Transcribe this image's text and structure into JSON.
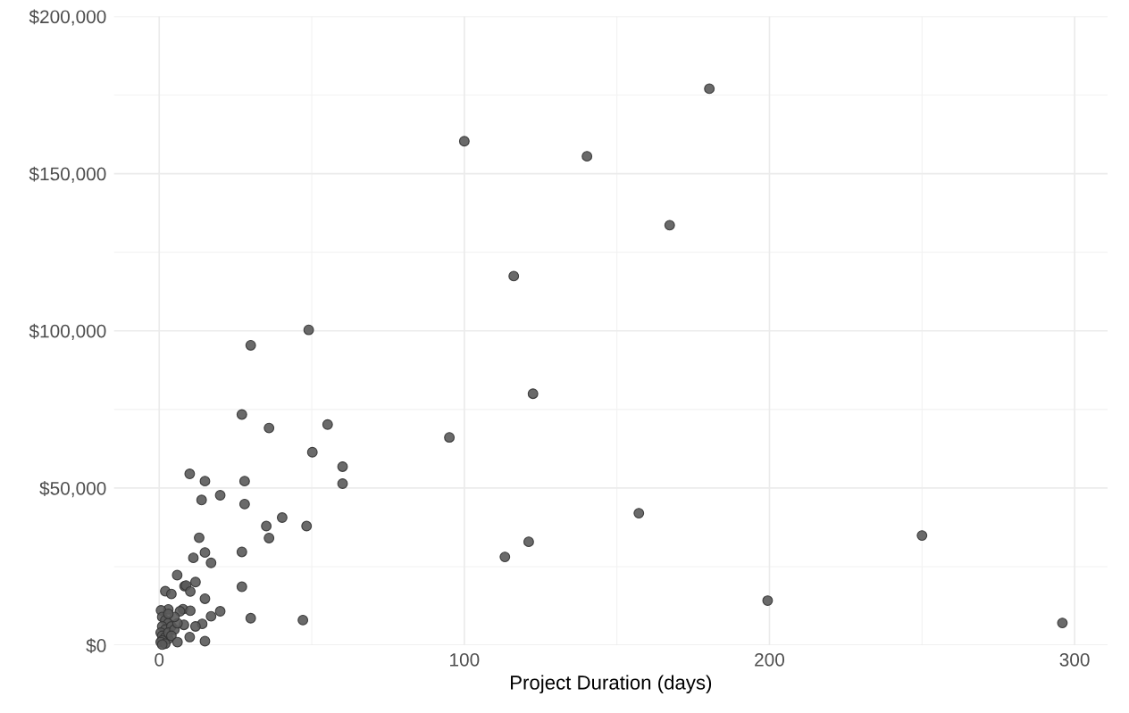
{
  "chart_data": {
    "type": "scatter",
    "xlabel": "Project Duration (days)",
    "xlim": [
      -14.8,
      310.8
    ],
    "xticks": [
      0,
      100,
      200,
      300
    ],
    "ylim": [
      0,
      200000
    ],
    "yticks": [
      {
        "value": 0,
        "label": "$0"
      },
      {
        "value": 50000,
        "label": "$50,000"
      },
      {
        "value": 100000,
        "label": "$100,000"
      },
      {
        "value": 150000,
        "label": "$150,000"
      },
      {
        "value": 200000,
        "label": "$200,000"
      }
    ],
    "grid": true,
    "marker": "circle",
    "series": [
      {
        "color": "#5a5a5a",
        "x": [
          100,
          180.3,
          140.2,
          167.3,
          116.2,
          30.0,
          49.0,
          122.5,
          27.1,
          55.2,
          36.0,
          95.1,
          50.2,
          60.1,
          60.1,
          10.0,
          15.0,
          28.0,
          20.0,
          13.9,
          28.0,
          40.3,
          35.1,
          48.3,
          36.0,
          157.2,
          250,
          121.1,
          113.3,
          13.1,
          15.0,
          27.1,
          11.2,
          17.0,
          5.9,
          8.3,
          8.8,
          11.9,
          10.2,
          2.0,
          4.0,
          15.0,
          27.1,
          30.0,
          47.1,
          20.0,
          17.0,
          14.1,
          11.9,
          8.1,
          10.0,
          15.0,
          7.8,
          10.2,
          6.8,
          3.0,
          0.6,
          199.4,
          296,
          1,
          2,
          3,
          1,
          2,
          4,
          0.5,
          1,
          2,
          3,
          1,
          0.5,
          2,
          1,
          3,
          5,
          4,
          6,
          5,
          3,
          6
        ],
        "values": [
          160300,
          177000,
          155500,
          133600,
          117400,
          95400,
          100300,
          80000,
          73400,
          70200,
          69100,
          66100,
          61400,
          56800,
          51400,
          54500,
          52200,
          52200,
          47700,
          46200,
          44900,
          40600,
          37900,
          37900,
          34100,
          42000,
          34900,
          32900,
          28100,
          34200,
          29500,
          29700,
          27800,
          26200,
          22300,
          18800,
          19000,
          20100,
          17100,
          17200,
          16300,
          14800,
          18600,
          8600,
          8000,
          10800,
          9200,
          6800,
          6000,
          6500,
          2600,
          1300,
          11500,
          11000,
          10800,
          11400,
          11100,
          14200,
          7100,
          9000,
          8000,
          7000,
          6000,
          5000,
          6000,
          4000,
          3000,
          2500,
          2000,
          1500,
          1000,
          500,
          200,
          4000,
          5000,
          3000,
          7000,
          9000,
          10000,
          1000
        ]
      }
    ]
  }
}
